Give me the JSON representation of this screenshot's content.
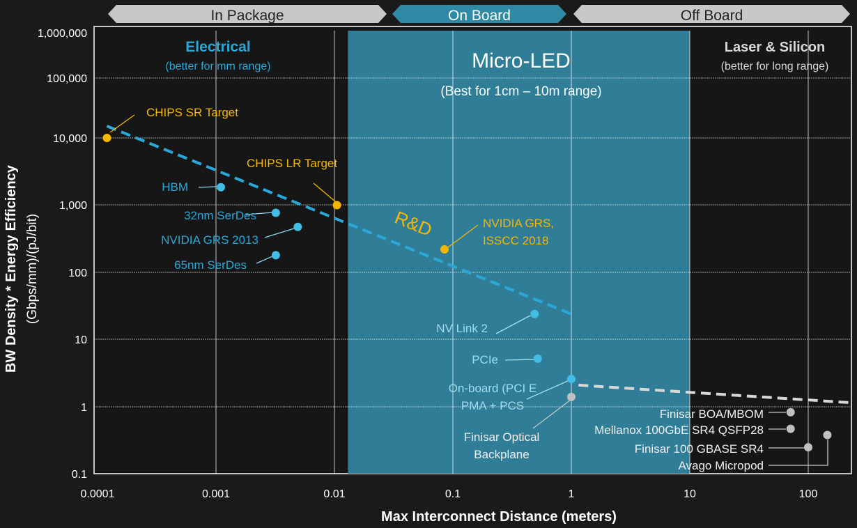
{
  "chart_data": {
    "type": "scatter",
    "title": "",
    "xlabel": "Max Interconnect Distance (meters)",
    "ylabel_line1": "BW Density * Energy Efficiency",
    "ylabel_line2": "(Gbps/mm)/(pJ/bit)",
    "x_scale": "log",
    "y_scale": "log",
    "xlim": [
      0.0001,
      230
    ],
    "ylim": [
      0.1,
      1000000
    ],
    "x_ticks": [
      "0.0001",
      "0.001",
      "0.01",
      "0.1",
      "1",
      "10",
      "100"
    ],
    "x_tick_values": [
      0.0001,
      0.001,
      0.01,
      0.1,
      1,
      10,
      100
    ],
    "y_ticks": [
      "0.1",
      "1",
      "10",
      "100",
      "1,000",
      "10,000",
      "100,000",
      "1,000,000"
    ],
    "y_tick_values": [
      0.1,
      1,
      10,
      100,
      1000,
      10000,
      100000,
      1000000
    ],
    "grid": true,
    "regions": [
      {
        "label": "In Package",
        "color": "#c8c8c8"
      },
      {
        "label": "On Board",
        "color": "#2f8aa6"
      },
      {
        "label": "Off Board",
        "color": "#c8c8c8"
      }
    ],
    "zones": {
      "electrical": {
        "title": "Electrical",
        "subtitle": "(better for mm range)",
        "color": "#2aa8d8"
      },
      "microled": {
        "title": "Micro-LED",
        "subtitle": "(Best for 1cm – 10m range)",
        "x_range": [
          0.013,
          10
        ],
        "color": "#2f7d96"
      },
      "laser": {
        "title": "Laser & Silicon",
        "subtitle": "(better for long range)",
        "color": "#d0d0d0"
      }
    },
    "trend_annotation": "R&D",
    "trends": [
      {
        "color": "#2aa8d8",
        "points": [
          [
            0.00012,
            15000
          ],
          [
            1,
            24
          ]
        ]
      },
      {
        "color": "#d8d8d8",
        "points": [
          [
            1.15,
            2.1
          ],
          [
            230,
            1.15
          ]
        ]
      }
    ],
    "colors": {
      "target": "#f5b700",
      "electrical": "#41bde6",
      "optical": "#c0c0c0",
      "background": "#1a1a1a"
    },
    "points": [
      {
        "label": [
          "CHIPS SR Target"
        ],
        "x": 0.00012,
        "y": 10000,
        "group": "target"
      },
      {
        "label": [
          "CHIPS LR Target"
        ],
        "x": 0.0105,
        "y": 1000,
        "group": "target"
      },
      {
        "label": [
          "HBM"
        ],
        "x": 0.0011,
        "y": 1850,
        "group": "electrical"
      },
      {
        "label": [
          "32nm SerDes"
        ],
        "x": 0.0032,
        "y": 770,
        "group": "electrical"
      },
      {
        "label": [
          "NVIDIA GRS 2013"
        ],
        "x": 0.0049,
        "y": 475,
        "group": "electrical"
      },
      {
        "label": [
          "65nm SerDes"
        ],
        "x": 0.0032,
        "y": 180,
        "group": "electrical"
      },
      {
        "label": [
          "NVIDIA GRS,",
          "ISSCC 2018"
        ],
        "x": 0.085,
        "y": 220,
        "group": "target"
      },
      {
        "label": [
          "NV Link 2"
        ],
        "x": 0.49,
        "y": 24,
        "group": "electrical"
      },
      {
        "label": [
          "PCIe"
        ],
        "x": 0.52,
        "y": 5.2,
        "group": "electrical"
      },
      {
        "label": [
          "On-board (PCI E",
          "PMA + PCS"
        ],
        "x": 1.0,
        "y": 2.6,
        "group": "electrical"
      },
      {
        "label": [
          "Finisar Optical",
          "Backplane"
        ],
        "x": 1.0,
        "y": 1.4,
        "group": "optical"
      },
      {
        "label": [
          "Finisar BOA/MBOM"
        ],
        "x": 71,
        "y": 0.83,
        "group": "optical"
      },
      {
        "label": [
          "Mellanox 100GbE SR4 QSFP28"
        ],
        "x": 71,
        "y": 0.47,
        "group": "optical"
      },
      {
        "label": [
          "Finisar 100 GBASE SR4"
        ],
        "x": 100,
        "y": 0.25,
        "group": "optical"
      },
      {
        "label": [
          "Avago Micropod"
        ],
        "x": 145,
        "y": 0.38,
        "group": "optical"
      }
    ]
  }
}
